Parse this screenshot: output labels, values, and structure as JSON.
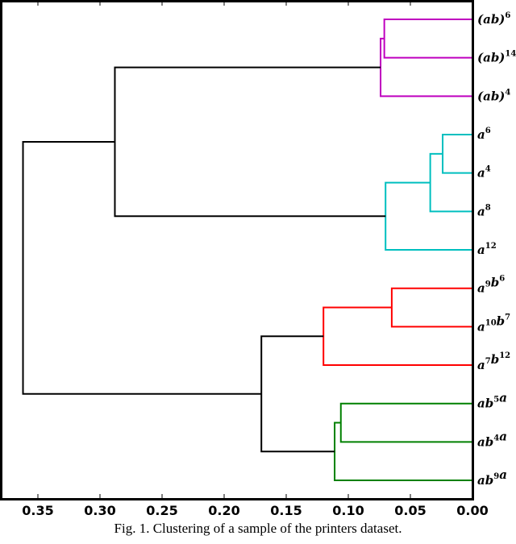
{
  "caption": "Fig. 1.  Clustering of a sample of the printers dataset.",
  "chart_data": {
    "type": "dendrogram",
    "title": "",
    "xlabel": "",
    "ylabel": "",
    "orientation": "left",
    "xlim": [
      0.38,
      0.0
    ],
    "x_ticks": [
      "0.35",
      "0.30",
      "0.25",
      "0.20",
      "0.15",
      "0.10",
      "0.05",
      "0.00"
    ],
    "x_tick_values": [
      0.35,
      0.3,
      0.25,
      0.2,
      0.15,
      0.1,
      0.05,
      0.0
    ],
    "leaves": [
      {
        "base": "(ab)",
        "sup": "6",
        "label": "(ab)^6"
      },
      {
        "base": "(ab)",
        "sup": "14",
        "label": "(ab)^14"
      },
      {
        "base": "(ab)",
        "sup": "4",
        "label": "(ab)^4"
      },
      {
        "base": "a",
        "sup": "6",
        "label": "a^6"
      },
      {
        "base": "a",
        "sup": "4",
        "label": "a^4"
      },
      {
        "base": "a",
        "sup": "8",
        "label": "a^8"
      },
      {
        "base": "a",
        "sup": "12",
        "label": "a^12"
      },
      {
        "parts": [
          [
            "a",
            "9"
          ],
          [
            "b",
            "6"
          ]
        ],
        "label": "a^9b^6"
      },
      {
        "parts": [
          [
            "a",
            "10"
          ],
          [
            "b",
            "7"
          ]
        ],
        "label": "a^10b^7"
      },
      {
        "parts": [
          [
            "a",
            "7"
          ],
          [
            "b",
            "12"
          ]
        ],
        "label": "a^7b^12"
      },
      {
        "parts": [
          [
            "ab",
            "5"
          ],
          [
            "a",
            ""
          ]
        ],
        "label": "ab^5a"
      },
      {
        "parts": [
          [
            "ab",
            "4"
          ],
          [
            "a",
            ""
          ]
        ],
        "label": "ab^4a"
      },
      {
        "parts": [
          [
            "ab",
            "9"
          ],
          [
            "a",
            ""
          ]
        ],
        "label": "ab^9a"
      }
    ],
    "clusters": [
      {
        "name": "magenta",
        "color": "#bf00bf",
        "leaves": [
          "(ab)^6",
          "(ab)^14",
          "(ab)^4"
        ]
      },
      {
        "name": "cyan",
        "color": "#00bfbf",
        "leaves": [
          "a^6",
          "a^4",
          "a^8",
          "a^12"
        ]
      },
      {
        "name": "red",
        "color": "#ff0000",
        "leaves": [
          "a^9b^6",
          "a^10b^7",
          "a^7b^12"
        ]
      },
      {
        "name": "green",
        "color": "#008000",
        "leaves": [
          "ab^5a",
          "ab^4a",
          "ab^9a"
        ]
      }
    ],
    "merges": [
      {
        "a": "(ab)^6",
        "b": "(ab)^14",
        "height": 0.071,
        "color": "#bf00bf"
      },
      {
        "a": "[(ab)^6,(ab)^14]",
        "b": "(ab)^4",
        "height": 0.074,
        "color": "#bf00bf"
      },
      {
        "a": "a^6",
        "b": "a^4",
        "height": 0.024,
        "color": "#00bfbf"
      },
      {
        "a": "[a^6,a^4]",
        "b": "a^8",
        "height": 0.034,
        "color": "#00bfbf"
      },
      {
        "a": "[a^6,a^4,a^8]",
        "b": "a^12",
        "height": 0.07,
        "color": "#00bfbf"
      },
      {
        "a": "a^9b^6",
        "b": "a^10b^7",
        "height": 0.065,
        "color": "#ff0000"
      },
      {
        "a": "[a^9b^6,a^10b^7]",
        "b": "a^7b^12",
        "height": 0.12,
        "color": "#ff0000"
      },
      {
        "a": "ab^5a",
        "b": "ab^4a",
        "height": 0.106,
        "color": "#008000"
      },
      {
        "a": "[ab^5a,ab^4a]",
        "b": "ab^9a",
        "height": 0.111,
        "color": "#008000"
      },
      {
        "a": "magenta",
        "b": "cyan",
        "height": 0.288,
        "color": "#000000"
      },
      {
        "a": "red",
        "b": "green",
        "height": 0.17,
        "color": "#000000"
      },
      {
        "a": "magenta+cyan",
        "b": "red+green",
        "height": 0.362,
        "color": "#000000"
      }
    ],
    "grid": false,
    "legend": "none"
  }
}
